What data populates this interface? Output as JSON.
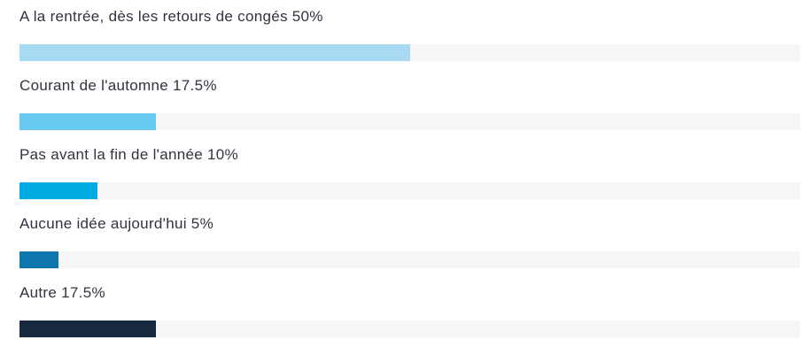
{
  "chart_data": {
    "type": "bar",
    "orientation": "horizontal",
    "title": "",
    "xlabel": "",
    "ylabel": "",
    "categories": [
      "A la rentrée, dès les retours de congés",
      "Courant de l'automne",
      "Pas avant la fin de l'année",
      "Aucune idée aujourd'hui",
      "Autre"
    ],
    "values": [
      50,
      17.5,
      10,
      5,
      17.5
    ],
    "value_labels": [
      "50%",
      "17.5%",
      "10%",
      "5%",
      "17.5%"
    ],
    "xlim": [
      0,
      100
    ],
    "grid": false,
    "legend": "none",
    "bar_colors": [
      "#a8dbf3",
      "#68c8ef",
      "#00abe3",
      "#0d76ad",
      "#16293f"
    ],
    "track_color": "#f6f6f6",
    "label_color": "#31333f"
  },
  "rows": [
    {
      "label": "A la rentrée, dès les retours de congés 50%",
      "value": 50,
      "color": "#a8dbf3"
    },
    {
      "label": "Courant de l'automne 17.5%",
      "value": 17.5,
      "color": "#68c8ef"
    },
    {
      "label": "Pas avant la fin de l'année 10%",
      "value": 10,
      "color": "#00abe3"
    },
    {
      "label": "Aucune idée aujourd'hui 5%",
      "value": 5,
      "color": "#0d76ad"
    },
    {
      "label": "Autre 17.5%",
      "value": 17.5,
      "color": "#16293f"
    }
  ]
}
